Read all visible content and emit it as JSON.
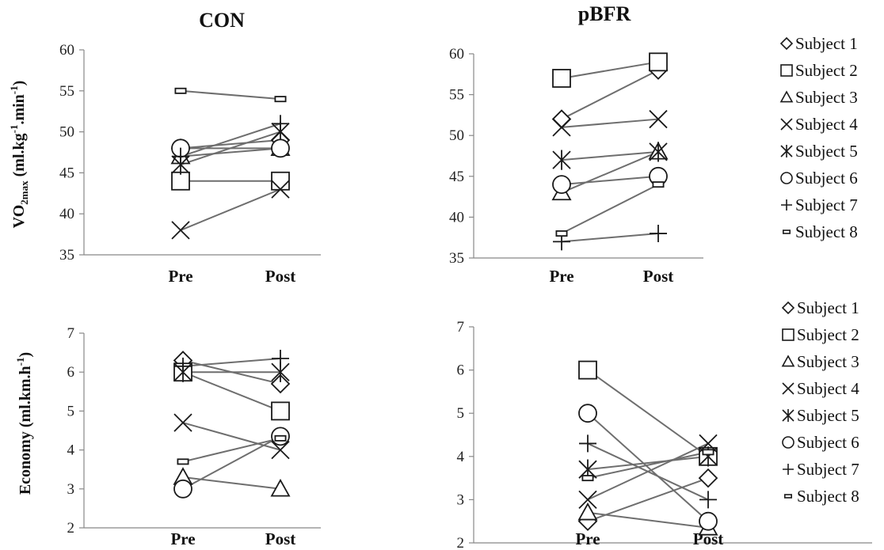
{
  "chart_data": [
    {
      "panel": "con-vo2",
      "type": "line",
      "title": "CON",
      "ylabel": "VO2max (ml.kg-1.min-1)",
      "categories": [
        "Pre",
        "Post"
      ],
      "ylim": [
        35,
        60
      ],
      "yticks": [
        35,
        40,
        45,
        50,
        55,
        60
      ],
      "series": [
        {
          "name": "Subject 1",
          "marker": "diamond",
          "values": [
            48,
            49
          ]
        },
        {
          "name": "Subject 2",
          "marker": "square",
          "values": [
            44,
            44
          ]
        },
        {
          "name": "Subject 3",
          "marker": "triangle",
          "values": [
            47,
            48
          ]
        },
        {
          "name": "Subject 4",
          "marker": "x",
          "values": [
            38,
            43
          ]
        },
        {
          "name": "Subject 5",
          "marker": "asterisk",
          "values": [
            46,
            50
          ]
        },
        {
          "name": "Subject 6",
          "marker": "circle",
          "values": [
            48,
            48
          ]
        },
        {
          "name": "Subject 7",
          "marker": "plus",
          "values": [
            47,
            51
          ]
        },
        {
          "name": "Subject 8",
          "marker": "dash",
          "values": [
            55,
            54
          ]
        }
      ]
    },
    {
      "panel": "pbfr-vo2",
      "type": "line",
      "title": "pBFR",
      "ylabel": "",
      "categories": [
        "Pre",
        "Post"
      ],
      "ylim": [
        35,
        60
      ],
      "yticks": [
        35,
        40,
        45,
        50,
        55,
        60
      ],
      "series": [
        {
          "name": "Subject 1",
          "marker": "diamond",
          "values": [
            52,
            58
          ]
        },
        {
          "name": "Subject 2",
          "marker": "square",
          "values": [
            57,
            59
          ]
        },
        {
          "name": "Subject 3",
          "marker": "triangle",
          "values": [
            43,
            48
          ]
        },
        {
          "name": "Subject 4",
          "marker": "x",
          "values": [
            51,
            52
          ]
        },
        {
          "name": "Subject 5",
          "marker": "asterisk",
          "values": [
            47,
            48
          ]
        },
        {
          "name": "Subject 6",
          "marker": "circle",
          "values": [
            44,
            45
          ]
        },
        {
          "name": "Subject 7",
          "marker": "plus",
          "values": [
            37,
            38
          ]
        },
        {
          "name": "Subject 8",
          "marker": "dash",
          "values": [
            38,
            44
          ]
        }
      ]
    },
    {
      "panel": "con-economy",
      "type": "line",
      "title": "",
      "ylabel": "Economy (ml.km.h-1)",
      "categories": [
        "Pre",
        "Post"
      ],
      "ylim": [
        2,
        7
      ],
      "yticks": [
        2,
        3,
        4,
        5,
        6,
        7
      ],
      "series": [
        {
          "name": "Subject 1",
          "marker": "diamond",
          "values": [
            6.3,
            5.7
          ]
        },
        {
          "name": "Subject 2",
          "marker": "square",
          "values": [
            6.0,
            5.0
          ]
        },
        {
          "name": "Subject 3",
          "marker": "triangle",
          "values": [
            3.3,
            3.0
          ]
        },
        {
          "name": "Subject 4",
          "marker": "x",
          "values": [
            4.7,
            4.0
          ]
        },
        {
          "name": "Subject 5",
          "marker": "asterisk",
          "values": [
            6.0,
            6.0
          ]
        },
        {
          "name": "Subject 6",
          "marker": "circle",
          "values": [
            3.0,
            4.35
          ]
        },
        {
          "name": "Subject 7",
          "marker": "plus",
          "values": [
            6.15,
            6.35
          ]
        },
        {
          "name": "Subject 8",
          "marker": "dash",
          "values": [
            3.7,
            4.3
          ]
        }
      ]
    },
    {
      "panel": "pbfr-economy",
      "type": "line",
      "title": "",
      "ylabel": "",
      "categories": [
        "Pre",
        "Post"
      ],
      "ylim": [
        2,
        7
      ],
      "yticks": [
        2,
        3,
        4,
        5,
        6,
        7
      ],
      "series": [
        {
          "name": "Subject 1",
          "marker": "diamond",
          "values": [
            2.5,
            3.5
          ]
        },
        {
          "name": "Subject 2",
          "marker": "square",
          "values": [
            6.0,
            4.0
          ]
        },
        {
          "name": "Subject 3",
          "marker": "triangle",
          "values": [
            2.7,
            2.35
          ]
        },
        {
          "name": "Subject 4",
          "marker": "x",
          "values": [
            3.0,
            4.3
          ]
        },
        {
          "name": "Subject 5",
          "marker": "asterisk",
          "values": [
            3.7,
            4.0
          ]
        },
        {
          "name": "Subject 6",
          "marker": "circle",
          "values": [
            5.0,
            2.5
          ]
        },
        {
          "name": "Subject 7",
          "marker": "plus",
          "values": [
            4.3,
            3.0
          ]
        },
        {
          "name": "Subject 8",
          "marker": "dash",
          "values": [
            3.5,
            4.1
          ]
        }
      ]
    }
  ],
  "legend": {
    "position": "right",
    "entries": [
      {
        "label": "Subject 1",
        "marker": "diamond"
      },
      {
        "label": "Subject 2",
        "marker": "square"
      },
      {
        "label": "Subject 3",
        "marker": "triangle"
      },
      {
        "label": "Subject 4",
        "marker": "x"
      },
      {
        "label": "Subject 5",
        "marker": "asterisk"
      },
      {
        "label": "Subject 6",
        "marker": "circle"
      },
      {
        "label": "Subject 7",
        "marker": "plus"
      },
      {
        "label": "Subject 8",
        "marker": "dash"
      }
    ]
  },
  "colors": {
    "line": "#6e6e6e",
    "marker": "#1a1a1a",
    "axis": "#888888"
  }
}
